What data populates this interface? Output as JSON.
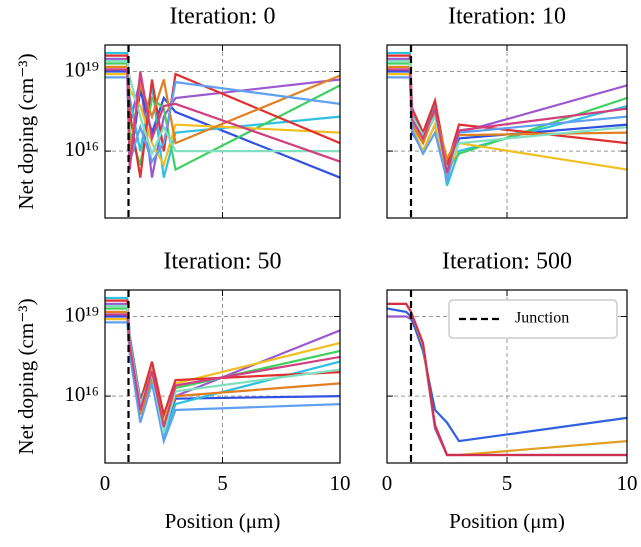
{
  "chart_data": [
    {
      "type": "line",
      "title": "Iteration: 0",
      "ylabel": "Net doping (cm⁻³)",
      "log_scale": true,
      "grid": true,
      "xlim": [
        0,
        10
      ],
      "ylim": [
        30000000000000.0,
        1e+20
      ],
      "xticks": [
        0,
        5,
        10
      ],
      "yticks": [
        {
          "value": 1e+16,
          "label": "10¹⁶"
        },
        {
          "value": 1e+19,
          "label": "10¹⁹"
        }
      ],
      "junction": 1,
      "x": [
        0,
        0.95,
        1.05,
        1.5,
        2,
        2.5,
        3,
        10
      ],
      "series": [
        {
          "color": "#9b59d0",
          "values": [
            3e+19,
            3e+19,
            1e+17,
            5e+18,
            1000000000000000.0,
            2e+17,
            1e+18,
            5e+18
          ]
        },
        {
          "color": "#3050e0",
          "values": [
            1e+19,
            1e+19,
            3000000000000000.0,
            2e+18,
            5e+16,
            1e+18,
            3e+17,
            1000000000000000.0
          ]
        },
        {
          "color": "#30c0e0",
          "values": [
            5e+19,
            5e+19,
            1e+18,
            1e+16,
            3e+18,
            1000000000000000.0,
            5e+16,
            2e+17
          ]
        },
        {
          "color": "#40d060",
          "values": [
            2e+19,
            2e+19,
            5e+16,
            3000000000000000.0,
            1e+18,
            4e+17,
            2000000000000000.0,
            3e+18
          ]
        },
        {
          "color": "#f0c020",
          "values": [
            8e+18,
            8e+18,
            2e+18,
            5e+17,
            2e+16,
            3000000000000000.0,
            1e+17,
            5e+16
          ]
        },
        {
          "color": "#e03030",
          "values": [
            4e+19,
            4e+19,
            3e+17,
            1000000000000000.0,
            5e+18,
            1e+16,
            8e+18,
            2e+16
          ]
        },
        {
          "color": "#e08020",
          "values": [
            1.5e+19,
            1.5e+19,
            1e+16,
            3e+18,
            2e+17,
            5e+18,
            2e+16,
            7e+18
          ]
        },
        {
          "color": "#60a0f0",
          "values": [
            6e+18,
            6e+18,
            4000000000000000.0,
            8e+16,
            4000000000000000.0,
            2e+16,
            4e+18,
            6e+17
          ]
        },
        {
          "color": "#80e0c0",
          "values": [
            2.5e+19,
            2.5e+19,
            6e+18,
            2e+17,
            8000000000000000.0,
            8e+16,
            1e+16,
            1e+16
          ]
        },
        {
          "color": "#d04080",
          "values": [
            1.2e+19,
            1.2e+19,
            2000000000000000.0,
            1e+19,
            3e+16,
            5e+17,
            6e+17,
            4000000000000000.0
          ]
        }
      ]
    },
    {
      "type": "line",
      "title": "Iteration: 10",
      "log_scale": true,
      "grid": true,
      "xlim": [
        0,
        10
      ],
      "ylim": [
        30000000000000.0,
        1e+20
      ],
      "xticks": [
        0,
        5,
        10
      ],
      "yticks": [
        {
          "value": 1e+16,
          "label": "10¹⁶"
        },
        {
          "value": 1e+19,
          "label": "10¹⁹"
        }
      ],
      "junction": 1,
      "x": [
        0,
        0.95,
        1.05,
        1.5,
        2,
        2.5,
        3,
        10
      ],
      "series": [
        {
          "color": "#9b59d0",
          "values": [
            3e+19,
            3e+19,
            1e+17,
            2e+16,
            3e+17,
            3000000000000000.0,
            5e+16,
            3e+18
          ]
        },
        {
          "color": "#3050e0",
          "values": [
            1e+19,
            1e+19,
            5e+16,
            1e+16,
            1e+17,
            1000000000000000.0,
            3e+16,
            1e+17
          ]
        },
        {
          "color": "#30c0e0",
          "values": [
            5e+19,
            5e+19,
            3e+17,
            5e+16,
            5e+17,
            500000000000000.0,
            1e+16,
            5e+17
          ]
        },
        {
          "color": "#40d060",
          "values": [
            2e+19,
            2e+19,
            2e+17,
            3e+16,
            2e+17,
            2000000000000000.0,
            8000000000000000.0,
            1e+18
          ]
        },
        {
          "color": "#f0c020",
          "values": [
            8e+18,
            8e+18,
            8e+16,
            1e+16,
            1e+17,
            1000000000000000.0,
            2e+16,
            2000000000000000.0
          ]
        },
        {
          "color": "#e03030",
          "values": [
            4e+19,
            4e+19,
            4e+17,
            5e+16,
            8e+17,
            3000000000000000.0,
            1e+17,
            2e+16
          ]
        },
        {
          "color": "#e08020",
          "values": [
            1.5e+19,
            1.5e+19,
            1e+17,
            2e+16,
            3e+17,
            5000000000000000.0,
            4e+16,
            5e+16
          ]
        },
        {
          "color": "#60a0f0",
          "values": [
            6e+18,
            6e+18,
            6e+16,
            8000000000000000.0,
            5e+16,
            800000000000000.0,
            5e+16,
            2e+17
          ]
        },
        {
          "color": "#80e0c0",
          "values": [
            2.5e+19,
            2.5e+19,
            2e+17,
            4e+16,
            2e+17,
            2000000000000000.0,
            2e+16,
            8e+16
          ]
        },
        {
          "color": "#d04080",
          "values": [
            1.2e+19,
            1.2e+19,
            1.5e+17,
            3e+16,
            4e+17,
            1500000000000000.0,
            6e+16,
            4e+17
          ]
        }
      ]
    },
    {
      "type": "line",
      "title": "Iteration: 50",
      "ylabel": "Net doping (cm⁻³)",
      "xlabel": "Position (μm)",
      "log_scale": true,
      "grid": true,
      "xlim": [
        0,
        10
      ],
      "ylim": [
        30000000000000.0,
        1e+20
      ],
      "xticks": [
        0,
        5,
        10
      ],
      "yticks": [
        {
          "value": 1e+16,
          "label": "10¹⁶"
        },
        {
          "value": 1e+19,
          "label": "10¹⁹"
        }
      ],
      "junction": 1,
      "x": [
        0,
        0.95,
        1.05,
        1.5,
        2,
        2.5,
        3,
        10
      ],
      "series": [
        {
          "color": "#9b59d0",
          "values": [
            3e+19,
            3e+19,
            1e+18,
            5000000000000000.0,
            8e+16,
            1000000000000000.0,
            1e+16,
            3e+18
          ]
        },
        {
          "color": "#3050e0",
          "values": [
            1e+19,
            1e+19,
            5e+17,
            2000000000000000.0,
            5e+16,
            500000000000000.0,
            8000000000000000.0,
            1e+16
          ]
        },
        {
          "color": "#30c0e0",
          "values": [
            5e+19,
            5e+19,
            2e+18,
            8000000000000000.0,
            1e+17,
            300000000000000.0,
            5000000000000000.0,
            2e+17
          ]
        },
        {
          "color": "#40d060",
          "values": [
            2e+19,
            2e+19,
            1e+18,
            4000000000000000.0,
            6e+16,
            800000000000000.0,
            2e+16,
            5e+17
          ]
        },
        {
          "color": "#f0c020",
          "values": [
            8e+18,
            8e+18,
            8e+17,
            3000000000000000.0,
            1e+17,
            1000000000000000.0,
            3e+16,
            1e+18
          ]
        },
        {
          "color": "#e03030",
          "values": [
            4e+19,
            4e+19,
            1.5e+18,
            6000000000000000.0,
            2e+17,
            2000000000000000.0,
            4e+16,
            8e+16
          ]
        },
        {
          "color": "#e08020",
          "values": [
            1.5e+19,
            1.5e+19,
            7e+17,
            2000000000000000.0,
            4e+16,
            600000000000000.0,
            1e+16,
            3e+16
          ]
        },
        {
          "color": "#60a0f0",
          "values": [
            6e+18,
            6e+18,
            4e+17,
            1000000000000000.0,
            3e+16,
            200000000000000.0,
            3000000000000000.0,
            5000000000000000.0
          ]
        },
        {
          "color": "#80e0c0",
          "values": [
            2.5e+19,
            2.5e+19,
            1.2e+18,
            5000000000000000.0,
            7e+16,
            400000000000000.0,
            1.5e+16,
            1e+17
          ]
        },
        {
          "color": "#d04080",
          "values": [
            1.2e+19,
            1.2e+19,
            9e+17,
            3000000000000000.0,
            9e+16,
            700000000000000.0,
            2.5e+16,
            3e+17
          ]
        }
      ]
    },
    {
      "type": "line",
      "title": "Iteration: 500",
      "xlabel": "Position (μm)",
      "log_scale": true,
      "grid": true,
      "xlim": [
        0,
        10
      ],
      "ylim": [
        30000000000000.0,
        1e+20
      ],
      "xticks": [
        0,
        5,
        10
      ],
      "yticks": [
        {
          "value": 1e+16,
          "label": "10¹⁶"
        },
        {
          "value": 1e+19,
          "label": "10¹⁹"
        }
      ],
      "junction": 1,
      "legend": {
        "label": "Junction",
        "loc": "upper right"
      },
      "x": [
        0,
        0.8,
        1,
        1.5,
        2,
        2.5,
        3,
        10
      ],
      "series": [
        {
          "color": "#9b59d0",
          "values": [
            1e+19,
            1e+19,
            8e+18,
            8e+17,
            600000000000000.0,
            60000000000000.0,
            60000000000000.0,
            60000000000000.0
          ]
        },
        {
          "color": "#3060e0",
          "values": [
            2e+19,
            1.5e+19,
            1e+19,
            5e+17,
            3000000000000000.0,
            1000000000000000.0,
            200000000000000.0,
            1500000000000000.0
          ]
        },
        {
          "color": "#e0a020",
          "values": [
            3e+19,
            3e+19,
            1.5e+19,
            8e+17,
            800000000000000.0,
            60000000000000.0,
            60000000000000.0,
            200000000000000.0
          ]
        },
        {
          "color": "#d03050",
          "values": [
            3e+19,
            3e+19,
            1.5e+19,
            1e+18,
            800000000000000.0,
            60000000000000.0,
            60000000000000.0,
            60000000000000.0
          ]
        }
      ]
    }
  ]
}
